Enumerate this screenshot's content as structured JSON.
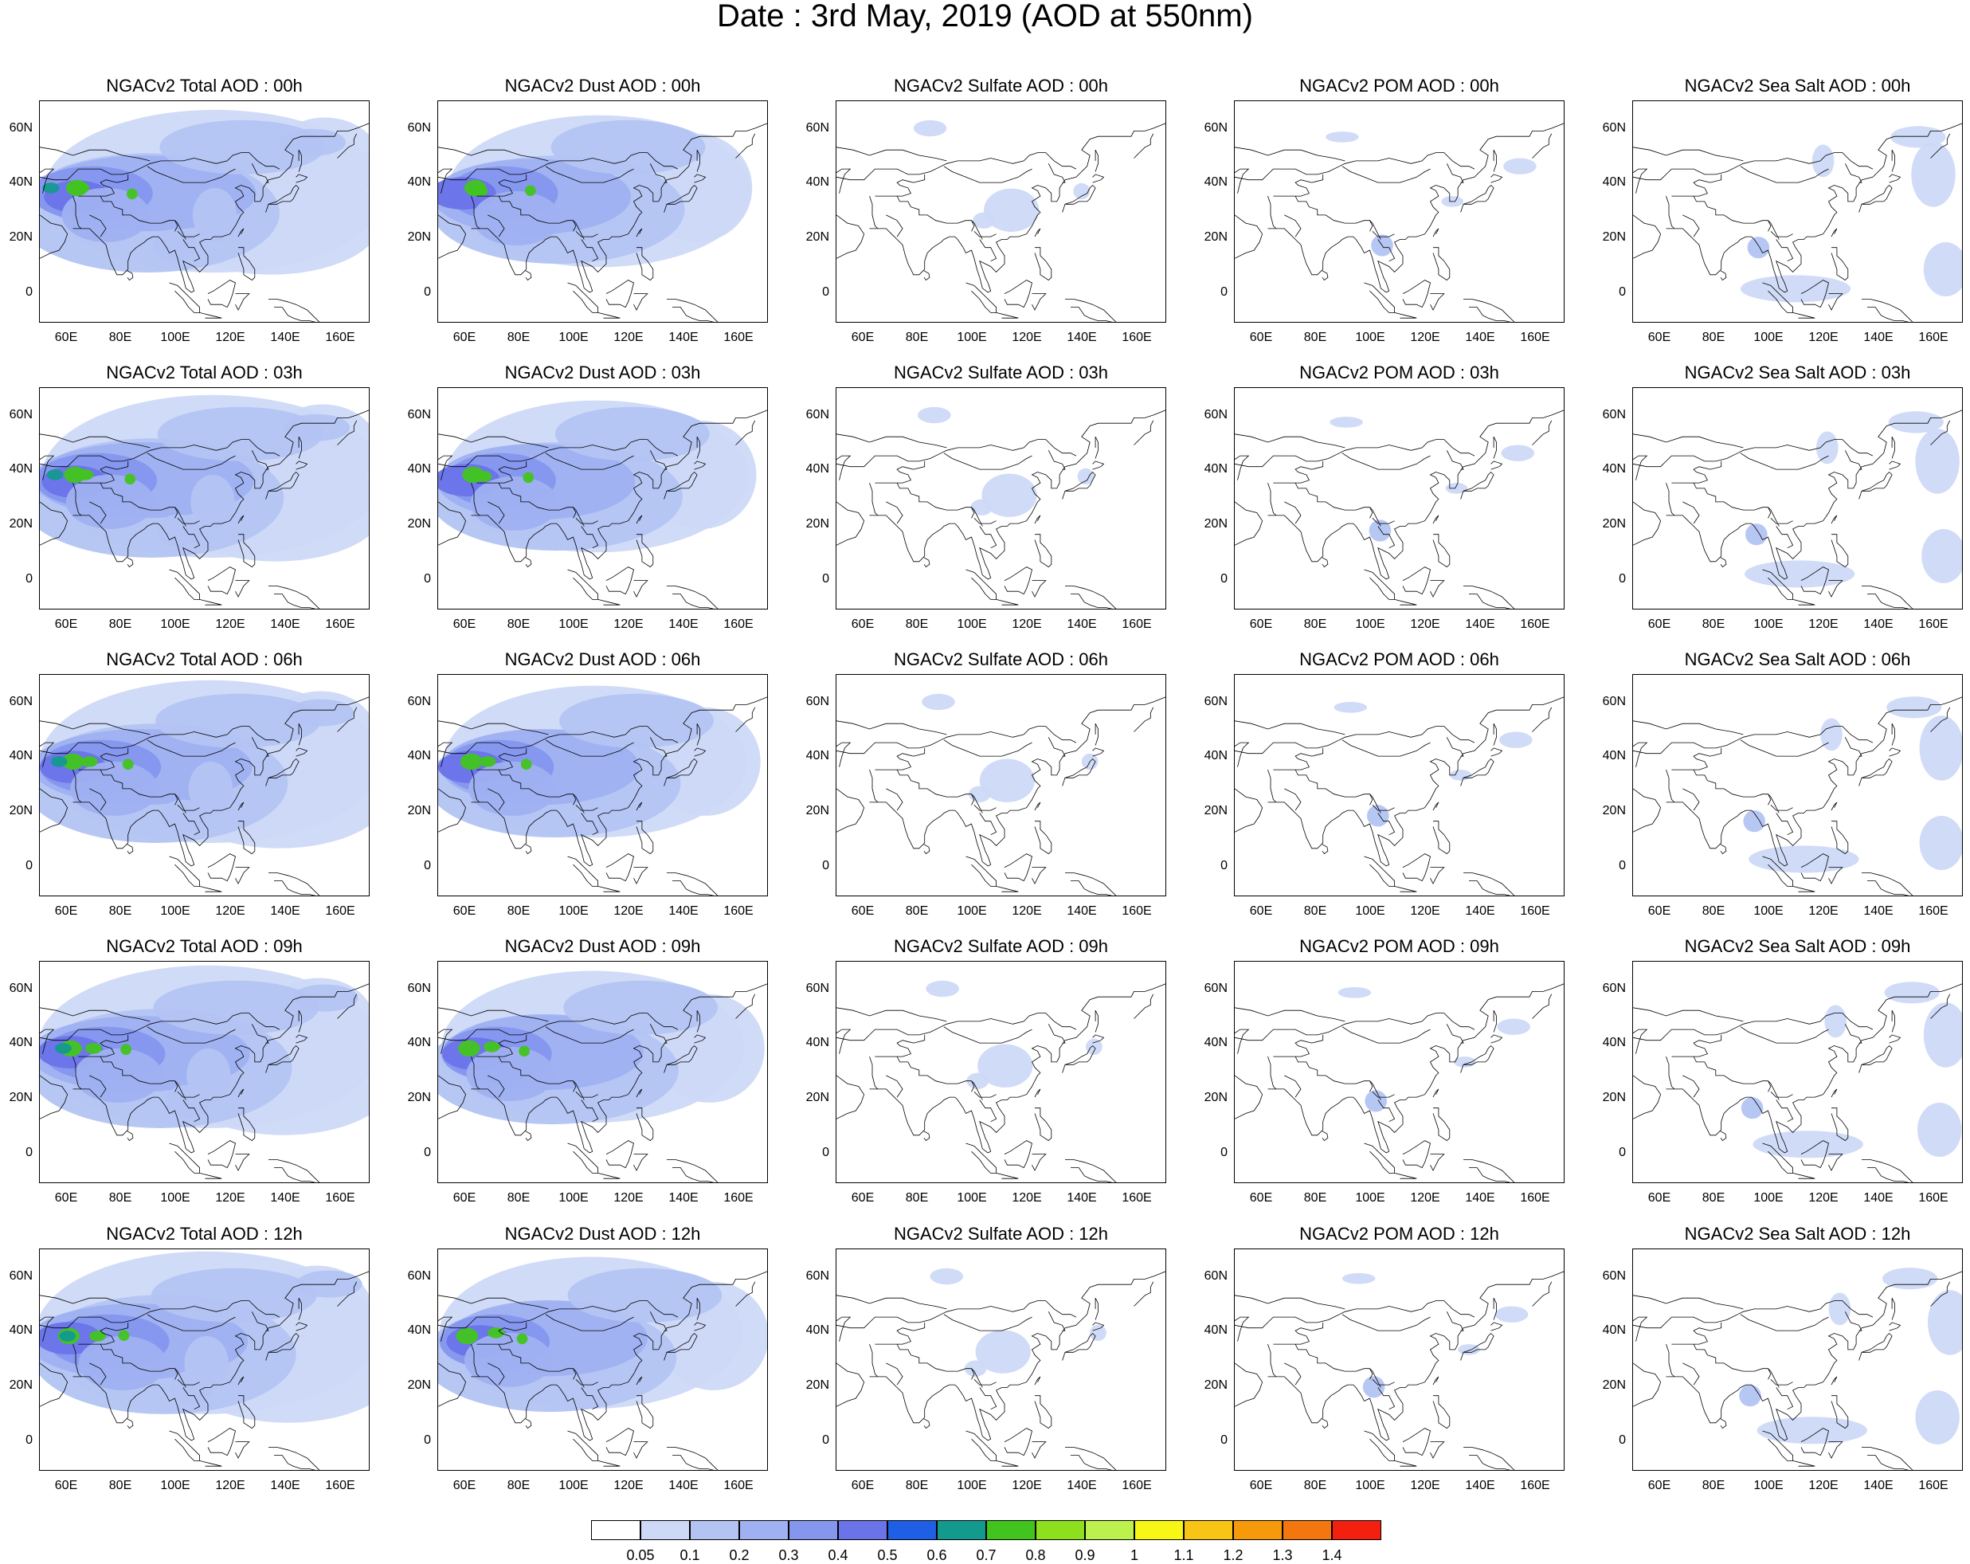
{
  "title": "Date : 3rd May, 2019 (AOD at 550nm)",
  "axes": {
    "y_ticks": [
      "60N",
      "40N",
      "20N",
      "0"
    ],
    "x_ticks": [
      "60E",
      "80E",
      "100E",
      "120E",
      "140E",
      "160E"
    ]
  },
  "columns": [
    {
      "key": "total",
      "titles": [
        "NGACv2 Total AOD : 00h",
        "NGACv2 Total AOD : 03h",
        "NGACv2 Total AOD : 06h",
        "NGACv2 Total AOD : 09h",
        "NGACv2 Total AOD  : 12h"
      ]
    },
    {
      "key": "dust",
      "titles": [
        "NGACv2 Dust AOD : 00h",
        "NGACv2 Dust AOD : 03h",
        "NGACv2 Dust AOD : 06h",
        "NGACv2 Dust AOD : 09h",
        "NGACv2 Dust AOD : 12h"
      ]
    },
    {
      "key": "sulfate",
      "titles": [
        "NGACv2 Sulfate AOD : 00h",
        "NGACv2 Sulfate AOD : 03h",
        "NGACv2 Sulfate AOD : 06h",
        "NGACv2 Sulfate AOD : 09h",
        "NGACv2 Sulfate AOD : 12h"
      ]
    },
    {
      "key": "pom",
      "titles": [
        "NGACv2 POM AOD : 00h",
        "NGACv2 POM AOD : 03h",
        "NGACv2 POM AOD : 06h",
        "NGACv2 POM AOD : 09h",
        "NGACv2 POM  AOD : 12h"
      ]
    },
    {
      "key": "seasalt",
      "titles": [
        "NGACv2 Sea Salt AOD : 00h",
        "NGACv2 Sea Salt AOD : 03h",
        "NGACv2 Sea Salt AOD : 06h",
        "NGACv2 Sea Salt  AOD : 09h",
        "NGACv2 Sea Salt  AOD : 12h"
      ]
    }
  ],
  "colorbar": {
    "labels": [
      "0.05",
      "0.1",
      "0.2",
      "0.3",
      "0.4",
      "0.5",
      "0.6",
      "0.7",
      "0.8",
      "0.9",
      "1",
      "1.1",
      "1.2",
      "1.3",
      "1.4"
    ],
    "colors": [
      "#ffffff",
      "#cdd9f7",
      "#b3c4f3",
      "#9fb1f1",
      "#8596ee",
      "#6a73e8",
      "#1f5fe6",
      "#14998f",
      "#42c41e",
      "#8de01d",
      "#bdf24e",
      "#f7f614",
      "#f8c416",
      "#f69a0c",
      "#f4760e",
      "#f3200f"
    ]
  }
}
